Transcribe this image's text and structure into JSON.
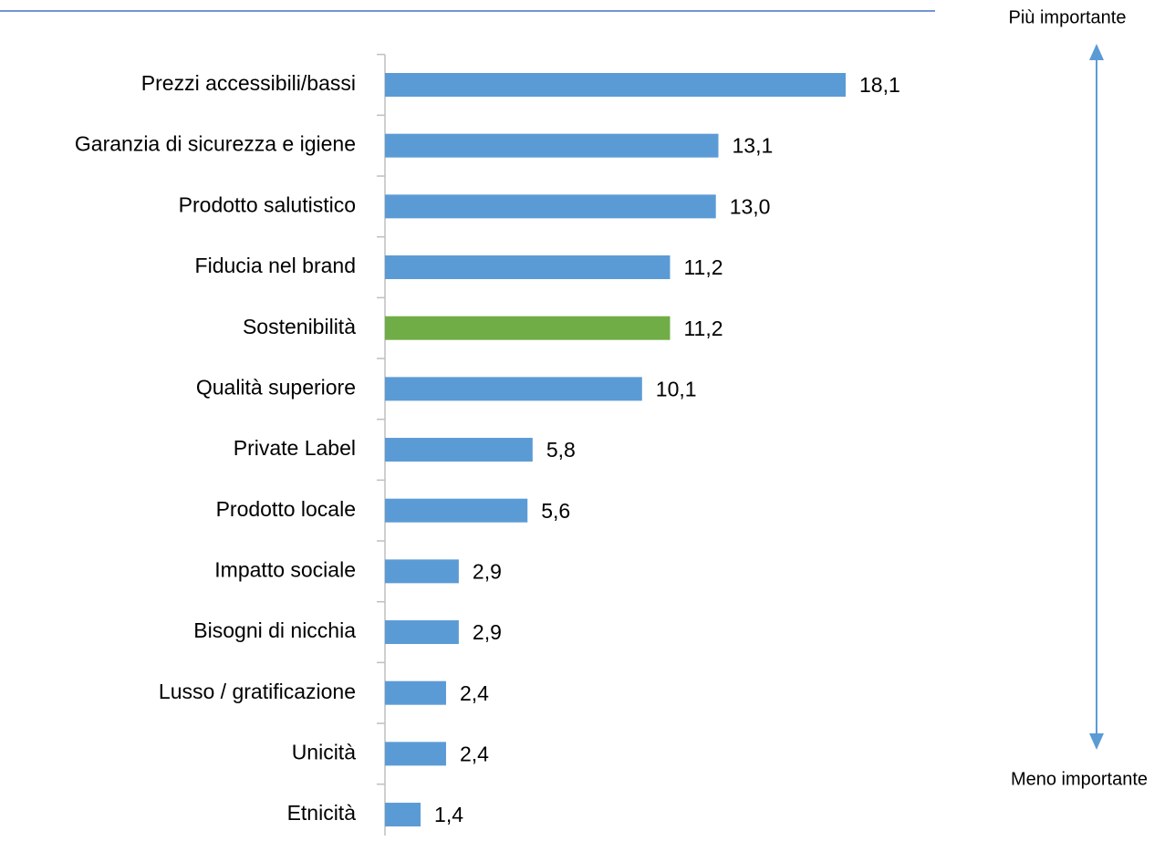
{
  "chart_data": {
    "type": "bar",
    "orientation": "horizontal",
    "categories": [
      "Prezzi accessibili/bassi",
      "Garanzia di sicurezza e igiene",
      "Prodotto salutistico",
      "Fiducia nel brand",
      "Sostenibilità",
      "Qualità superiore",
      "Private Label",
      "Prodotto locale",
      "Impatto sociale",
      "Bisogni di nicchia",
      "Lusso / gratificazione",
      "Unicità",
      "Etnicità"
    ],
    "values": [
      18.1,
      13.1,
      13.0,
      11.2,
      11.2,
      10.1,
      5.8,
      5.6,
      2.9,
      2.9,
      2.4,
      2.4,
      1.4
    ],
    "value_labels": [
      "18,1",
      "13,1",
      "13,0",
      "11,2",
      "11,2",
      "10,1",
      "5,8",
      "5,6",
      "2,9",
      "2,9",
      "2,4",
      "2,4",
      "1,4"
    ],
    "colors": [
      "#5b9bd5",
      "#5b9bd5",
      "#5b9bd5",
      "#5b9bd5",
      "#70ad47",
      "#5b9bd5",
      "#5b9bd5",
      "#5b9bd5",
      "#5b9bd5",
      "#5b9bd5",
      "#5b9bd5",
      "#5b9bd5",
      "#5b9bd5"
    ],
    "annotations": [
      "Più importante",
      "Meno importante"
    ]
  }
}
